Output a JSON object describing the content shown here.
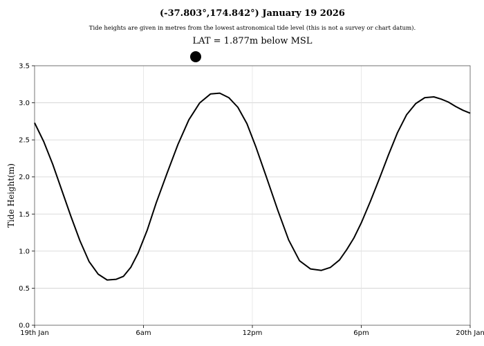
{
  "title": "(-37.803°,174.842°) January 19 2026",
  "subtitle": "Tide heights are given in metres from the lowest astronomical tide level (this is not a survey or chart datum).",
  "lat_text": "LAT = 1.877m below MSL",
  "chart_data": {
    "type": "line",
    "title": "(-37.803°,174.842°) January 19 2026",
    "xlabel": "",
    "ylabel": "Tide Height(m)",
    "xlim": [
      0,
      24
    ],
    "ylim": [
      0,
      3.5
    ],
    "grid": true,
    "x_ticks": [
      {
        "value": 0,
        "label": "19th Jan"
      },
      {
        "value": 6,
        "label": "6am"
      },
      {
        "value": 12,
        "label": "12pm"
      },
      {
        "value": 18,
        "label": "6pm"
      },
      {
        "value": 24,
        "label": "20th Jan"
      }
    ],
    "y_ticks": [
      0.0,
      0.5,
      1.0,
      1.5,
      2.0,
      2.5,
      3.0,
      3.5
    ],
    "y_tick_labels": [
      "0.0",
      "0.5",
      "1.0",
      "1.5",
      "2.0",
      "2.5",
      "3.0",
      "3.5"
    ],
    "current_time_marker": 8.9,
    "series": [
      {
        "color": "#000000",
        "x": [
          0,
          0.5,
          1,
          1.5,
          2,
          2.5,
          3,
          3.5,
          4,
          4.5,
          4.9,
          5.3,
          5.7,
          6.2,
          6.7,
          7.3,
          7.9,
          8.5,
          9.1,
          9.7,
          10.2,
          10.7,
          11.2,
          11.7,
          12.2,
          12.8,
          13.4,
          14.0,
          14.6,
          15.2,
          15.8,
          16.3,
          16.8,
          17.2,
          17.6,
          18.0,
          18.5,
          19.0,
          19.5,
          20.0,
          20.5,
          21.0,
          21.5,
          22.0,
          22.4,
          22.8,
          23.2,
          23.6,
          24.0
        ],
        "y": [
          2.73,
          2.48,
          2.17,
          1.82,
          1.47,
          1.14,
          0.86,
          0.69,
          0.61,
          0.62,
          0.66,
          0.78,
          0.97,
          1.28,
          1.65,
          2.05,
          2.44,
          2.77,
          3.0,
          3.12,
          3.13,
          3.07,
          2.94,
          2.72,
          2.4,
          1.98,
          1.55,
          1.15,
          0.87,
          0.76,
          0.74,
          0.78,
          0.88,
          1.02,
          1.18,
          1.38,
          1.67,
          1.98,
          2.3,
          2.6,
          2.84,
          2.99,
          3.07,
          3.08,
          3.05,
          3.01,
          2.95,
          2.9,
          2.86
        ]
      }
    ]
  }
}
